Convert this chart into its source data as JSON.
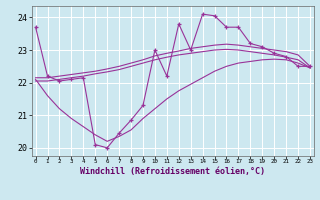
{
  "xlabel": "Windchill (Refroidissement éolien,°C)",
  "bg_color": "#cde8f0",
  "line_color": "#993399",
  "grid_color": "#ffffff",
  "hours": [
    0,
    1,
    2,
    3,
    4,
    5,
    6,
    7,
    8,
    9,
    10,
    11,
    12,
    13,
    14,
    15,
    16,
    17,
    18,
    19,
    20,
    21,
    22,
    23
  ],
  "windchill": [
    23.7,
    22.2,
    22.05,
    22.1,
    22.15,
    20.1,
    20.0,
    20.45,
    20.85,
    21.3,
    23.0,
    22.2,
    23.8,
    23.0,
    24.1,
    24.05,
    23.7,
    23.7,
    23.2,
    23.1,
    22.9,
    22.8,
    22.5,
    22.5
  ],
  "reg_upper": [
    22.15,
    22.15,
    22.2,
    22.25,
    22.3,
    22.35,
    22.42,
    22.5,
    22.6,
    22.7,
    22.82,
    22.9,
    22.97,
    23.05,
    23.1,
    23.15,
    23.18,
    23.15,
    23.1,
    23.05,
    23.0,
    22.95,
    22.85,
    22.5
  ],
  "reg_mid": [
    22.05,
    22.05,
    22.1,
    22.15,
    22.2,
    22.27,
    22.33,
    22.4,
    22.5,
    22.6,
    22.7,
    22.78,
    22.85,
    22.9,
    22.95,
    23.0,
    23.02,
    23.0,
    22.95,
    22.9,
    22.85,
    22.78,
    22.7,
    22.45
  ],
  "reg_lower": [
    22.1,
    21.6,
    21.2,
    20.9,
    20.65,
    20.4,
    20.2,
    20.35,
    20.55,
    20.9,
    21.2,
    21.5,
    21.75,
    21.95,
    22.15,
    22.35,
    22.5,
    22.6,
    22.65,
    22.7,
    22.72,
    22.7,
    22.6,
    22.45
  ],
  "ylim": [
    19.75,
    24.35
  ],
  "yticks": [
    20,
    21,
    22,
    23,
    24
  ],
  "xlim": [
    -0.3,
    23.3
  ]
}
